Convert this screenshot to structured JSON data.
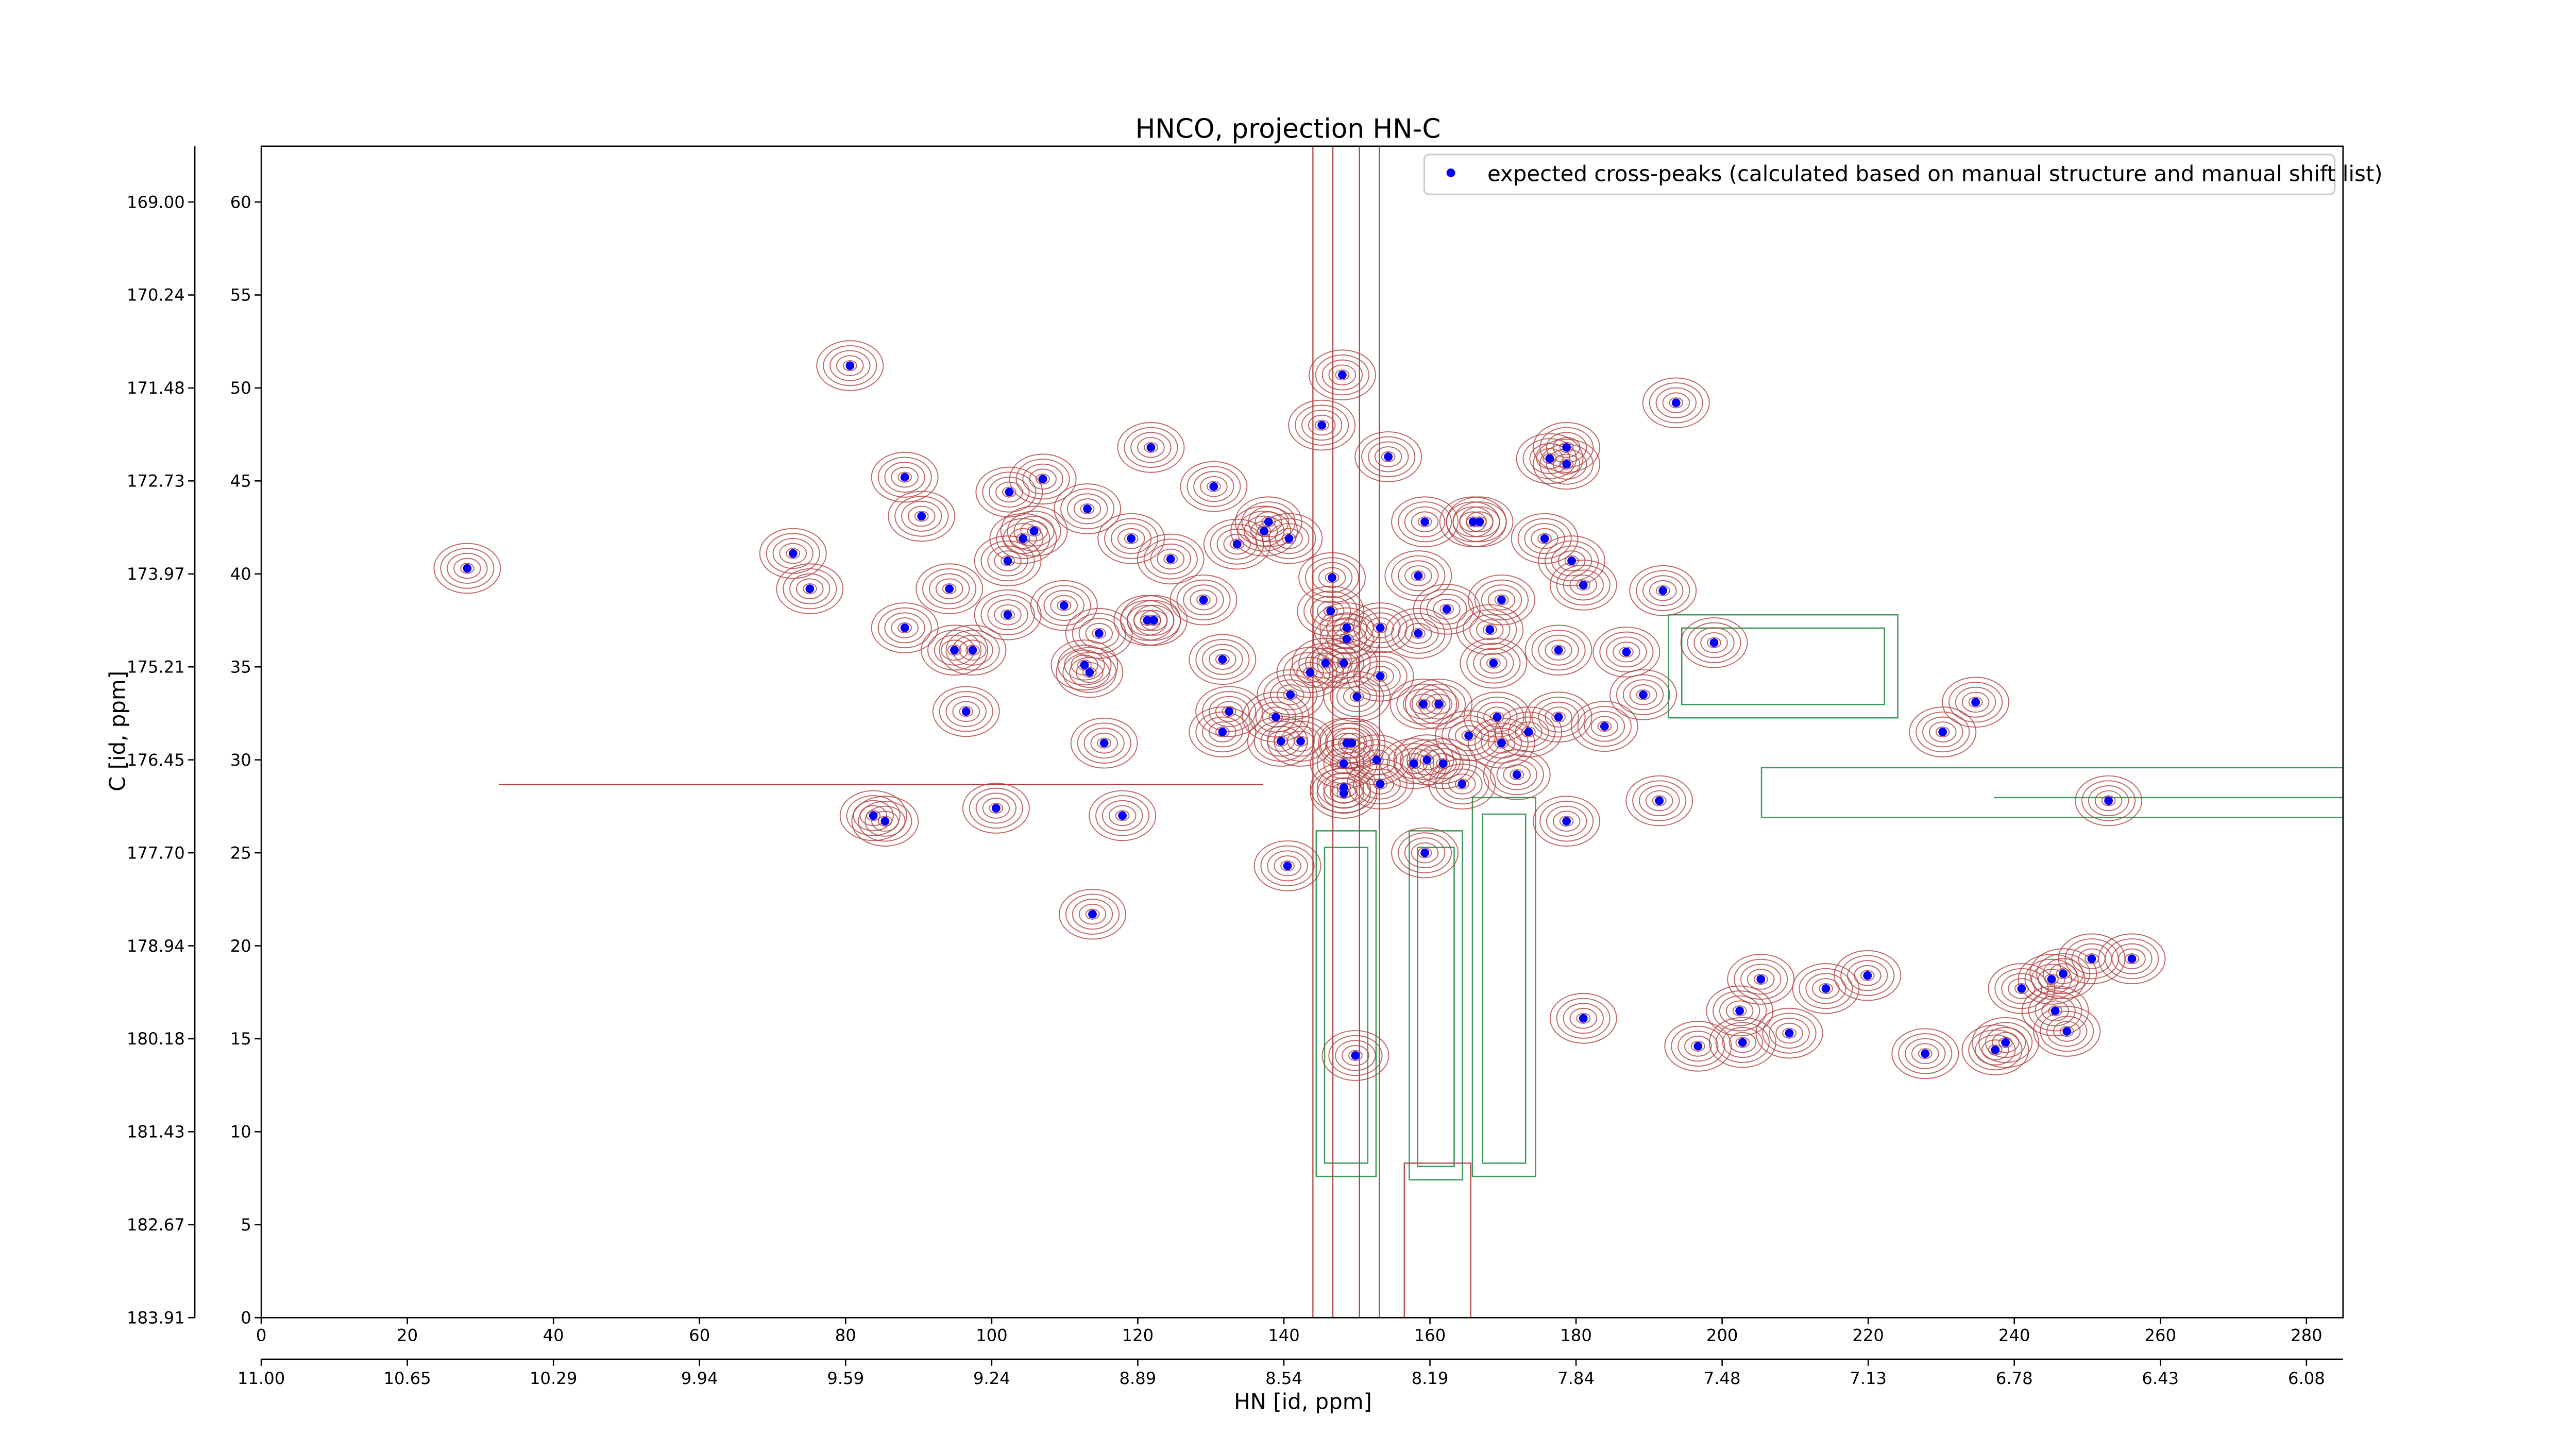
{
  "chart_data": {
    "type": "scatter",
    "title": "HNCO, projection HN-C",
    "x_label": "HN [id, ppm]",
    "y_label": "C [id, ppm]",
    "xlim": [
      0,
      285
    ],
    "ylim": [
      0,
      63
    ],
    "xticks": [
      0,
      20,
      40,
      60,
      80,
      100,
      120,
      140,
      160,
      180,
      200,
      220,
      240,
      260,
      280
    ],
    "yticks": [
      0,
      5,
      10,
      15,
      20,
      25,
      30,
      35,
      40,
      45,
      50,
      55,
      60
    ],
    "x_ppm_ticks": [
      {
        "value": 0,
        "label": "11.00"
      },
      {
        "value": 20,
        "label": "10.65"
      },
      {
        "value": 40,
        "label": "10.29"
      },
      {
        "value": 60,
        "label": "9.94"
      },
      {
        "value": 80,
        "label": "9.59"
      },
      {
        "value": 100,
        "label": "9.24"
      },
      {
        "value": 120,
        "label": "8.89"
      },
      {
        "value": 140,
        "label": "8.54"
      },
      {
        "value": 160,
        "label": "8.19"
      },
      {
        "value": 180,
        "label": "7.84"
      },
      {
        "value": 200,
        "label": "7.48"
      },
      {
        "value": 220,
        "label": "7.13"
      },
      {
        "value": 240,
        "label": "6.78"
      },
      {
        "value": 260,
        "label": "6.43"
      },
      {
        "value": 280,
        "label": "6.08"
      }
    ],
    "y_ppm_ticks": [
      {
        "value": 60,
        "label": "169.00"
      },
      {
        "value": 55,
        "label": "170.24"
      },
      {
        "value": 50,
        "label": "171.48"
      },
      {
        "value": 45,
        "label": "172.73"
      },
      {
        "value": 40,
        "label": "173.97"
      },
      {
        "value": 35,
        "label": "175.21"
      },
      {
        "value": 30,
        "label": "176.45"
      },
      {
        "value": 25,
        "label": "177.70"
      },
      {
        "value": 20,
        "label": "178.94"
      },
      {
        "value": 15,
        "label": "180.18"
      },
      {
        "value": 10,
        "label": "181.43"
      },
      {
        "value": 5,
        "label": "182.67"
      },
      {
        "value": 0,
        "label": "183.91"
      }
    ],
    "legend": "upper right",
    "x": [
      28.2,
      80.6,
      88.1,
      90.4,
      72.8,
      75.1,
      88.1,
      94.2,
      94.9,
      97.4,
      96.5,
      102.4,
      107.0,
      105.8,
      104.3,
      102.2,
      102.2,
      109.9,
      113.1,
      119.1,
      124.5,
      121.8,
      130.4,
      114.7,
      112.7,
      113.4,
      121.3,
      122.2,
      129.0,
      131.6,
      132.5,
      131.6,
      115.4,
      133.6,
      137.3,
      137.9,
      140.7,
      145.2,
      148.0,
      154.3,
      159.3,
      165.9,
      166.8,
      175.7,
      176.4,
      178.7,
      178.7,
      193.7,
      179.4,
      181.0,
      191.9,
      198.9,
      162.3,
      158.4,
      146.6,
      146.4,
      148.6,
      148.6,
      153.2,
      158.4,
      168.2,
      169.8,
      168.7,
      177.6,
      186.9,
      145.7,
      143.6,
      148.2,
      140.9,
      138.9,
      150.0,
      153.2,
      159.1,
      161.2,
      159.6,
      161.8,
      148.6,
      149.3,
      139.6,
      142.3,
      148.2,
      148.2,
      148.2,
      152.7,
      153.2,
      157.8,
      164.4,
      165.3,
      169.2,
      169.8,
      173.5,
      171.9,
      177.6,
      183.9,
      189.2,
      234.7,
      230.2,
      191.4,
      178.7,
      252.9,
      83.8,
      85.4,
      100.6,
      117.9,
      140.5,
      159.3,
      113.8,
      181.0,
      149.8,
      196.7,
      202.8,
      202.4,
      205.3,
      209.2,
      214.2,
      219.9,
      227.8,
      237.4,
      238.8,
      241.0,
      245.1,
      245.6,
      247.2,
      246.7,
      250.6,
      256.1
    ],
    "series": [
      {
        "name": "expected cross-peaks (calculated based on manual structure and manual shift list)",
        "color": "#0000ff",
        "values": [
          40.3,
          51.2,
          45.2,
          43.1,
          41.1,
          39.2,
          37.1,
          39.2,
          35.9,
          35.9,
          32.6,
          44.4,
          45.1,
          42.3,
          41.9,
          40.7,
          37.8,
          38.3,
          43.5,
          41.9,
          40.8,
          46.8,
          44.7,
          36.8,
          35.1,
          34.7,
          37.5,
          37.5,
          38.6,
          35.4,
          32.6,
          31.5,
          30.9,
          41.6,
          42.3,
          42.8,
          41.9,
          48.0,
          50.7,
          46.3,
          42.8,
          42.8,
          42.8,
          41.9,
          46.2,
          46.8,
          45.9,
          49.2,
          40.7,
          39.4,
          39.1,
          36.3,
          38.1,
          39.9,
          39.8,
          38.0,
          37.1,
          36.5,
          37.1,
          36.8,
          37.0,
          38.6,
          35.2,
          35.9,
          35.8,
          35.2,
          34.7,
          35.2,
          33.5,
          32.3,
          33.4,
          34.5,
          33.0,
          33.0,
          30.0,
          29.8,
          30.9,
          30.9,
          31.0,
          31.0,
          29.8,
          28.5,
          28.2,
          30.0,
          28.7,
          29.8,
          28.7,
          31.3,
          32.3,
          30.9,
          31.5,
          29.2,
          32.3,
          31.8,
          33.5,
          33.1,
          31.5,
          27.8,
          26.7,
          27.8,
          27.0,
          26.7,
          27.4,
          27.0,
          24.3,
          25.0,
          21.7,
          16.1,
          14.1,
          14.6,
          14.8,
          16.5,
          18.2,
          15.3,
          17.7,
          18.4,
          14.2,
          14.4,
          14.8,
          17.7,
          18.2,
          16.5,
          15.4,
          18.5,
          19.3,
          19.3
        ]
      }
    ]
  }
}
